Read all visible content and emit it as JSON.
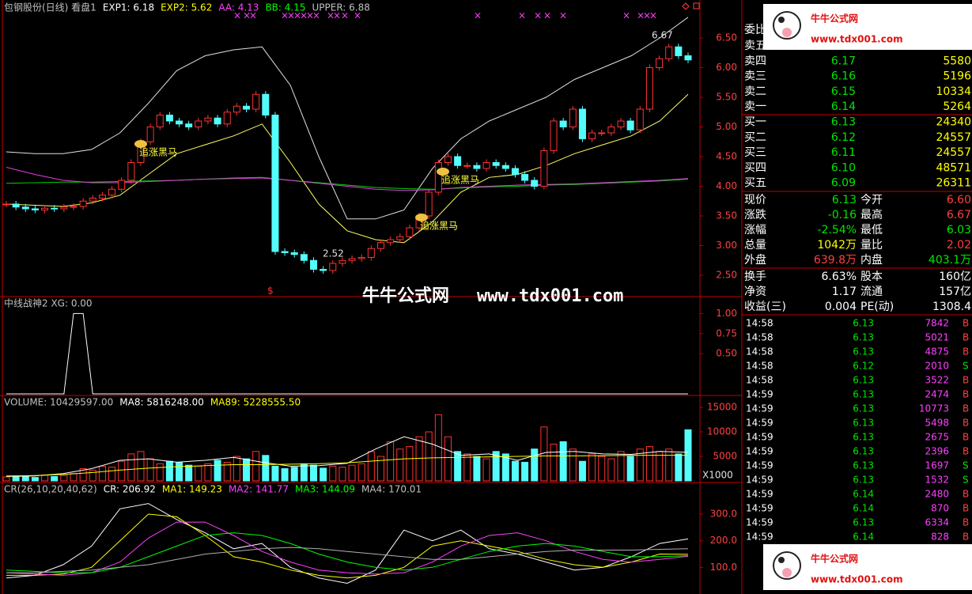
{
  "header": [
    {
      "text": "包钢股份(日线) 看盘1",
      "color": "#c0c0c0"
    },
    {
      "text": "EXP1: 6.18",
      "color": "#ffffff"
    },
    {
      "text": "EXP2: 5.62",
      "color": "#ffff00"
    },
    {
      "text": "AA: 4.13",
      "color": "#ff40ff"
    },
    {
      "text": "BB: 4.15",
      "color": "#00ff00"
    },
    {
      "text": "UPPER: 6.88",
      "color": "#c0c0c0"
    }
  ],
  "chart_data": [
    {
      "type": "candlestick",
      "up_color": "#ff3232",
      "down_color": "#54fcfc",
      "ylim": [
        2.14,
        7.14
      ],
      "yticks": [
        {
          "value": 6.5,
          "label": "6.50"
        },
        {
          "value": 6,
          "label": "6.00"
        },
        {
          "value": 5.5,
          "label": "5.50"
        },
        {
          "value": 5,
          "label": "5.00"
        },
        {
          "value": 4.5,
          "label": "4.50"
        },
        {
          "value": 4,
          "label": "4.00"
        },
        {
          "value": 3.5,
          "label": "3.50"
        },
        {
          "value": 3,
          "label": "3.00"
        },
        {
          "value": 2.5,
          "label": "2.50"
        }
      ],
      "close": [
        3.7,
        3.65,
        3.62,
        3.6,
        3.63,
        3.62,
        3.65,
        3.66,
        3.75,
        3.8,
        3.85,
        3.95,
        4.1,
        4.4,
        4.75,
        5.0,
        5.2,
        5.1,
        5.05,
        5.0,
        5.1,
        5.15,
        5.05,
        5.25,
        5.35,
        5.3,
        5.55,
        5.2,
        2.9,
        2.88,
        2.85,
        2.75,
        2.6,
        2.58,
        2.7,
        2.75,
        2.78,
        2.8,
        2.95,
        3.05,
        3.1,
        3.15,
        3.3,
        3.5,
        3.9,
        4.4,
        4.5,
        4.35,
        4.35,
        4.3,
        4.4,
        4.35,
        4.3,
        4.2,
        4.1,
        4.0,
        4.6,
        5.1,
        5.0,
        5.3,
        4.8,
        4.9,
        4.9,
        5.0,
        5.1,
        4.95,
        5.3,
        6.0,
        6.15,
        6.35,
        6.2,
        6.13
      ],
      "lines": [
        {
          "color": "#e0e0e0",
          "values": [
            4.58,
            4.55,
            4.55,
            4.62,
            4.9,
            5.4,
            5.95,
            6.2,
            6.3,
            6.35,
            5.7,
            4.5,
            3.45,
            3.45,
            3.6,
            4.3,
            4.8,
            5.1,
            5.3,
            5.5,
            5.8,
            6.0,
            6.2,
            6.5,
            6.85
          ]
        },
        {
          "color": "#ffff60",
          "values": [
            3.7,
            3.68,
            3.66,
            3.72,
            3.85,
            4.2,
            4.55,
            4.7,
            4.85,
            5.05,
            4.4,
            3.7,
            3.25,
            3.1,
            3.05,
            3.4,
            3.9,
            4.15,
            4.2,
            4.35,
            4.55,
            4.7,
            4.85,
            5.1,
            5.55
          ]
        },
        {
          "color": "#00d000",
          "values": [
            4.05,
            4.06,
            4.07,
            4.07,
            4.08,
            4.09,
            4.1,
            4.12,
            4.14,
            4.15,
            4.1,
            4.06,
            4.02,
            3.98,
            3.96,
            3.95,
            3.97,
            3.99,
            4.0,
            4.02,
            4.03,
            4.05,
            4.07,
            4.09,
            4.12
          ]
        },
        {
          "color": "#e040e0",
          "values": [
            4.32,
            4.2,
            4.1,
            4.06,
            4.06,
            4.08,
            4.1,
            4.12,
            4.13,
            4.14,
            4.1,
            4.05,
            4.0,
            3.95,
            3.93,
            3.94,
            3.98,
            4.0,
            4.02,
            4.03,
            4.04,
            4.06,
            4.08,
            4.1,
            4.13
          ]
        }
      ],
      "annotations": [
        "追涨黑马",
        "追涨黑马",
        "追涨黑马",
        "6.67",
        "2.52",
        "$"
      ]
    },
    {
      "type": "line",
      "title": "中线战神2 XG: 0.00",
      "color": "#ffffff",
      "ylim": [
        0,
        1.2
      ],
      "yticks": [
        {
          "value": 1,
          "label": "1.00"
        },
        {
          "value": 0.75,
          "label": "0.75"
        },
        {
          "value": 0.5,
          "label": "0.50"
        }
      ],
      "values": [
        0,
        0,
        0,
        0,
        0,
        0,
        0,
        1,
        1,
        0,
        0,
        0,
        0,
        0,
        0,
        0,
        0,
        0,
        0,
        0,
        0,
        0,
        0,
        0,
        0,
        0,
        0,
        0,
        0,
        0,
        0,
        0,
        0,
        0,
        0,
        0,
        0,
        0,
        0,
        0,
        0,
        0,
        0,
        0,
        0,
        0,
        0,
        0,
        0,
        0,
        0,
        0,
        0,
        0,
        0,
        0,
        0,
        0,
        0,
        0,
        0,
        0,
        0,
        0,
        0,
        0,
        0,
        0,
        0,
        0,
        0,
        0
      ]
    },
    {
      "type": "bar",
      "title_items": [
        {
          "text": "VOLUME: 10429597.00",
          "color": "#c0c0c0"
        },
        {
          "text": "MA8: 5816248.00",
          "color": "#ffffff"
        },
        {
          "text": "MA89: 5228555.50",
          "color": "#ffff00"
        }
      ],
      "unit_label": "X1000",
      "ylim": [
        0,
        17100
      ],
      "yticks": [
        15000,
        10000,
        5000
      ],
      "values": [
        800,
        1000,
        900,
        700,
        1200,
        900,
        1100,
        1500,
        2500,
        2200,
        3000,
        2800,
        4000,
        5500,
        6000,
        4500,
        3500,
        4000,
        3800,
        3200,
        3000,
        3500,
        4200,
        3800,
        5000,
        4500,
        6000,
        5200,
        3000,
        2500,
        2800,
        3500,
        3200,
        2600,
        3000,
        2800,
        3200,
        3500,
        6000,
        5000,
        8000,
        6500,
        7000,
        9000,
        10000,
        13500,
        9000,
        6000,
        5500,
        5000,
        4500,
        6000,
        5500,
        4000,
        3800,
        6500,
        11000,
        7500,
        8000,
        6500,
        4000,
        5500,
        5000,
        4500,
        6000,
        5000,
        6500,
        7000,
        6000,
        6500,
        5500,
        10429
      ],
      "lines": [
        {
          "color": "#ffffff",
          "values": [
            900,
            1000,
            1500,
            2500,
            4200,
            4500,
            3800,
            4200,
            4800,
            3800,
            3000,
            3100,
            3600,
            6500,
            9000,
            7500,
            5200,
            5500,
            4200,
            5800,
            6000,
            5500,
            5400,
            6000,
            5816
          ]
        },
        {
          "color": "#ffff00",
          "values": [
            1000,
            1100,
            1300,
            1700,
            2200,
            2600,
            2900,
            3100,
            3300,
            3300,
            3400,
            3500,
            3700,
            4100,
            4500,
            4700,
            4800,
            4900,
            5000,
            5100,
            5100,
            5150,
            5200,
            5220,
            5228
          ]
        }
      ]
    },
    {
      "type": "line",
      "title_items": [
        {
          "text": "CR(26,10,20,40,62)",
          "color": "#c0c0c0"
        },
        {
          "text": "CR: 206.92",
          "color": "#ffffff"
        },
        {
          "text": "MA1: 149.23",
          "color": "#ffff00"
        },
        {
          "text": "MA2: 141.77",
          "color": "#ff40ff"
        },
        {
          "text": "MA3: 144.09",
          "color": "#00ff00"
        },
        {
          "text": "MA4: 170.01",
          "color": "#c0c0c0"
        }
      ],
      "ylim": [
        0,
        413
      ],
      "yticks": [
        {
          "value": 300,
          "label": "300.0"
        },
        {
          "value": 200,
          "label": "200.0"
        },
        {
          "value": 100,
          "label": "100.0"
        }
      ],
      "series": [
        {
          "color": "#ffffff",
          "values": [
            60,
            70,
            110,
            180,
            320,
            340,
            280,
            230,
            170,
            190,
            100,
            60,
            40,
            90,
            240,
            200,
            240,
            170,
            150,
            120,
            90,
            100,
            140,
            190,
            206.92
          ]
        },
        {
          "color": "#ffff00",
          "values": [
            70,
            70,
            75,
            100,
            200,
            300,
            290,
            220,
            140,
            120,
            90,
            70,
            60,
            70,
            100,
            180,
            200,
            180,
            160,
            130,
            110,
            100,
            120,
            150,
            149.23
          ]
        },
        {
          "color": "#ff40ff",
          "values": [
            80,
            75,
            70,
            80,
            120,
            210,
            270,
            270,
            220,
            160,
            120,
            90,
            80,
            75,
            80,
            120,
            180,
            220,
            230,
            200,
            160,
            130,
            120,
            130,
            141.77
          ]
        },
        {
          "color": "#00ff00",
          "values": [
            90,
            85,
            80,
            80,
            100,
            140,
            180,
            220,
            230,
            220,
            190,
            150,
            120,
            100,
            90,
            100,
            130,
            160,
            180,
            190,
            180,
            160,
            140,
            140,
            144.09
          ]
        },
        {
          "color": "#b0b0b0",
          "values": [
            80,
            80,
            85,
            90,
            100,
            110,
            130,
            150,
            160,
            170,
            175,
            170,
            160,
            150,
            140,
            130,
            130,
            140,
            150,
            160,
            165,
            165,
            165,
            168,
            170.01
          ]
        }
      ]
    }
  ],
  "order_book": {
    "ratio_label": "委比",
    "rows": [
      {
        "label": "卖五"
      },
      {
        "label": "卖四",
        "price": "6.17",
        "volume": "5580"
      },
      {
        "label": "卖三",
        "price": "6.16",
        "volume": "5196"
      },
      {
        "label": "卖二",
        "price": "6.15",
        "volume": "10334"
      },
      {
        "label": "卖一",
        "price": "6.14",
        "volume": "5264"
      },
      {
        "label": "买一",
        "price": "6.13",
        "volume": "24340"
      },
      {
        "label": "买二",
        "price": "6.12",
        "volume": "24557"
      },
      {
        "label": "买三",
        "price": "6.11",
        "volume": "24557"
      },
      {
        "label": "买四",
        "price": "6.10",
        "volume": "48571"
      },
      {
        "label": "买五",
        "price": "6.09",
        "volume": "26311"
      }
    ]
  },
  "quote": [
    [
      {
        "label": "现价",
        "value": "6.13",
        "color": "#00e600"
      },
      {
        "label": "今开",
        "value": "6.60",
        "color": "#ff4040"
      }
    ],
    [
      {
        "label": "涨跌",
        "value": "-0.16",
        "color": "#00e600"
      },
      {
        "label": "最高",
        "value": "6.67",
        "color": "#ff4040"
      }
    ],
    [
      {
        "label": "涨幅",
        "value": "-2.54%",
        "color": "#00e600"
      },
      {
        "label": "最低",
        "value": "6.03",
        "color": "#00e600"
      }
    ],
    [
      {
        "label": "总量",
        "value": "1042万",
        "color": "#ffff00"
      },
      {
        "label": "量比",
        "value": "2.02",
        "color": "#ff4040"
      }
    ],
    [
      {
        "label": "外盘",
        "value": "639.8万",
        "color": "#ff4040"
      },
      {
        "label": "内盘",
        "value": "403.1万",
        "color": "#00e600"
      }
    ],
    [
      {
        "label": "换手",
        "value": "6.63%",
        "color": "#ffffff"
      },
      {
        "label": "股本",
        "value": "160亿",
        "color": "#ffffff"
      }
    ],
    [
      {
        "label": "净资",
        "value": "1.17",
        "color": "#ffffff"
      },
      {
        "label": "流通",
        "value": "157亿",
        "color": "#ffffff"
      }
    ],
    [
      {
        "label": "收益(三)",
        "value": "0.004",
        "color": "#ffffff"
      },
      {
        "label": "PE(动)",
        "value": "1308.4",
        "color": "#ffffff"
      }
    ]
  ],
  "ticks": [
    {
      "time": "14:58",
      "price": "6.13",
      "volume": "7842",
      "side": "B",
      "side_color": "#ff4040"
    },
    {
      "time": "14:58",
      "price": "6.13",
      "volume": "5021",
      "side": "B",
      "side_color": "#ff4040"
    },
    {
      "time": "14:58",
      "price": "6.13",
      "volume": "4875",
      "side": "B",
      "side_color": "#ff4040"
    },
    {
      "time": "14:58",
      "price": "6.12",
      "volume": "2010",
      "side": "S",
      "side_color": "#00e600"
    },
    {
      "time": "14:58",
      "price": "6.13",
      "volume": "3522",
      "side": "B",
      "side_color": "#ff4040"
    },
    {
      "time": "14:59",
      "price": "6.13",
      "volume": "2474",
      "side": "B",
      "side_color": "#ff4040"
    },
    {
      "time": "14:59",
      "price": "6.13",
      "volume": "10773",
      "side": "B",
      "side_color": "#ff4040"
    },
    {
      "time": "14:59",
      "price": "6.13",
      "volume": "5498",
      "side": "B",
      "side_color": "#ff4040"
    },
    {
      "time": "14:59",
      "price": "6.13",
      "volume": "2675",
      "side": "B",
      "side_color": "#ff4040"
    },
    {
      "time": "14:59",
      "price": "6.13",
      "volume": "2396",
      "side": "B",
      "side_color": "#ff4040"
    },
    {
      "time": "14:59",
      "price": "6.13",
      "volume": "1697",
      "side": "S",
      "side_color": "#00e600"
    },
    {
      "time": "14:59",
      "price": "6.13",
      "volume": "1532",
      "side": "S",
      "side_color": "#00e600"
    },
    {
      "time": "14:59",
      "price": "6.14",
      "volume": "2480",
      "side": "B",
      "side_color": "#ff4040"
    },
    {
      "time": "14:59",
      "price": "6.14",
      "volume": "870",
      "side": "B",
      "side_color": "#ff4040"
    },
    {
      "time": "14:59",
      "price": "6.13",
      "volume": "6334",
      "side": "B",
      "side_color": "#ff4040"
    },
    {
      "time": "14:59",
      "price": "6.14",
      "volume": "828",
      "side": "B",
      "side_color": "#ff4040"
    }
  ],
  "watermark": {
    "site_name": "牛牛公式网",
    "url": "www.tdx001.com"
  }
}
